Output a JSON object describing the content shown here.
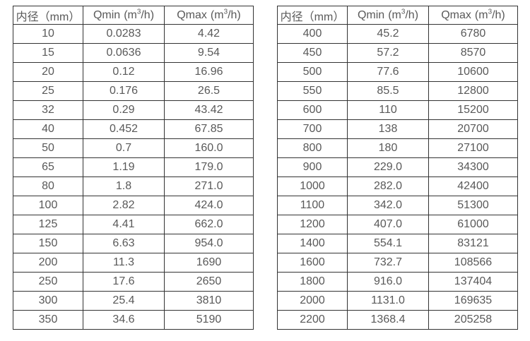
{
  "style": {
    "border_color": "#333333",
    "text_color": "#595959",
    "background": "#ffffff"
  },
  "tables": [
    {
      "title": "small-diameter-flow-table",
      "headers": {
        "diameter": "内径（mm）",
        "qmin": {
          "name": "Qmin",
          "unit_open": "(m",
          "unit_sup": "3",
          "unit_close": "/h)"
        },
        "qmax": {
          "name": "Qmax",
          "unit_open": "(m",
          "unit_sup": "3",
          "unit_close": "/h)"
        }
      },
      "rows": [
        [
          "10",
          "0.0283",
          "4.42"
        ],
        [
          "15",
          "0.0636",
          "9.54"
        ],
        [
          "20",
          "0.12",
          "16.96"
        ],
        [
          "25",
          "0.176",
          "26.5"
        ],
        [
          "32",
          "0.29",
          "43.42"
        ],
        [
          "40",
          "0.452",
          "67.85"
        ],
        [
          "50",
          "0.7",
          "160.0"
        ],
        [
          "65",
          "1.19",
          "179.0"
        ],
        [
          "80",
          "1.8",
          "271.0"
        ],
        [
          "100",
          "2.82",
          "424.0"
        ],
        [
          "125",
          "4.41",
          "662.0"
        ],
        [
          "150",
          "6.63",
          "954.0"
        ],
        [
          "200",
          "11.3",
          "1690"
        ],
        [
          "250",
          "17.6",
          "2650"
        ],
        [
          "300",
          "25.4",
          "3810"
        ],
        [
          "350",
          "34.6",
          "5190"
        ]
      ]
    },
    {
      "title": "large-diameter-flow-table",
      "headers": {
        "diameter": "内径（mm）",
        "qmin": {
          "name": "Qmin",
          "unit_open": "(m",
          "unit_sup": "3",
          "unit_close": "/h)"
        },
        "qmax": {
          "name": "Qmax",
          "unit_open": "(m",
          "unit_sup": "3",
          "unit_close": "/h)"
        }
      },
      "rows": [
        [
          "400",
          "45.2",
          "6780"
        ],
        [
          "450",
          "57.2",
          "8570"
        ],
        [
          "500",
          "77.6",
          "10600"
        ],
        [
          "550",
          "85.5",
          "12800"
        ],
        [
          "600",
          "110",
          "15200"
        ],
        [
          "700",
          "138",
          "20700"
        ],
        [
          "800",
          "180",
          "27100"
        ],
        [
          "900",
          "229.0",
          "34300"
        ],
        [
          "1000",
          "282.0",
          "42400"
        ],
        [
          "1100",
          "342.0",
          "51300"
        ],
        [
          "1200",
          "407.0",
          "61000"
        ],
        [
          "1400",
          "554.1",
          "83121"
        ],
        [
          "1600",
          "732.7",
          "108566"
        ],
        [
          "1800",
          "916.0",
          "137404"
        ],
        [
          "2000",
          "1131.0",
          "169635"
        ],
        [
          "2200",
          "1368.4",
          "205258"
        ]
      ]
    }
  ]
}
